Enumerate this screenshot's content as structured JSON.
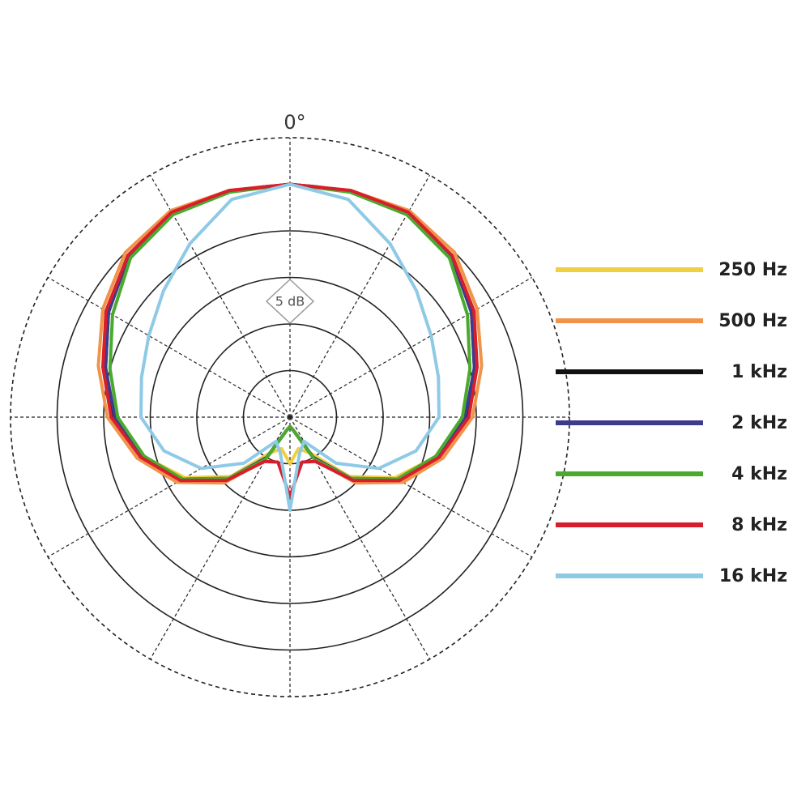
{
  "chart_data": {
    "type": "polar",
    "angle_label": "0°",
    "scale_label": "5 dB",
    "angles": [
      0,
      15,
      30,
      45,
      60,
      75,
      90,
      105,
      120,
      135,
      150,
      165,
      180,
      195,
      210,
      225,
      240,
      255,
      270,
      285,
      300,
      315,
      330,
      345
    ],
    "rlim": [
      0,
      30
    ],
    "rticks": [
      5,
      10,
      15,
      20,
      25,
      30
    ],
    "thetaticks": [
      0,
      30,
      60,
      90,
      120,
      150,
      180,
      210,
      240,
      270,
      300,
      330
    ],
    "grid": true,
    "legend": "right",
    "series": [
      {
        "name": "250 Hz",
        "color": "#f0d040",
        "values": [
          25,
          25.1,
          25.3,
          24.6,
          22.8,
          20.8,
          19,
          16.3,
          13,
          9,
          4.5,
          3.5,
          5,
          3.5,
          4.5,
          9,
          13,
          16.3,
          19,
          20.8,
          22.8,
          24.6,
          25.3,
          25.1
        ]
      },
      {
        "name": "500 Hz",
        "color": "#f0944a",
        "values": [
          25,
          25.2,
          25.6,
          25,
          23.2,
          21.3,
          19.6,
          17,
          14,
          10,
          5.3,
          1.5,
          1,
          1.5,
          5.3,
          10,
          14,
          17,
          19.6,
          21.3,
          23.2,
          25,
          25.6,
          25.2
        ]
      },
      {
        "name": "1 kHz",
        "color": "#111111",
        "values": [
          25,
          25.1,
          25.3,
          24.5,
          22.5,
          20.5,
          19,
          16.5,
          13.5,
          9.5,
          5,
          1.5,
          1,
          1.5,
          5,
          9.5,
          13.5,
          16.5,
          19,
          20.5,
          22.5,
          24.5,
          25.3,
          25.1
        ]
      },
      {
        "name": "2 kHz",
        "color": "#3c3b8e",
        "values": [
          25,
          25.1,
          25.3,
          24.5,
          22.5,
          20.5,
          18.8,
          16.3,
          13.3,
          9.3,
          5,
          1.5,
          1,
          1.5,
          5,
          9.3,
          13.3,
          16.3,
          18.8,
          20.5,
          22.5,
          24.5,
          25.3,
          25.1
        ]
      },
      {
        "name": "4 kHz",
        "color": "#4aaa2e",
        "values": [
          25,
          25,
          25.1,
          24.2,
          22,
          20,
          18.5,
          16.2,
          13.3,
          9.3,
          5.2,
          1.5,
          1,
          1.5,
          5.2,
          9.3,
          13.3,
          16.2,
          18.5,
          20,
          22,
          24.2,
          25.1,
          25
        ]
      },
      {
        "name": "8 kHz",
        "color": "#d81e2c",
        "values": [
          25,
          25.2,
          25.4,
          24.6,
          22.8,
          20.8,
          19.2,
          16.6,
          13.6,
          9.6,
          5.5,
          5,
          8.5,
          5,
          5.5,
          9.6,
          13.6,
          16.6,
          19.2,
          20.8,
          22.8,
          24.6,
          25.4,
          25.2
        ]
      },
      {
        "name": "16 kHz",
        "color": "#8ecae6",
        "values": [
          25,
          24.2,
          21.5,
          19.2,
          17.5,
          16.5,
          16,
          14,
          11,
          7,
          3,
          4,
          10,
          4,
          3,
          7,
          11,
          14,
          16,
          16.5,
          17.5,
          19.2,
          21.5,
          24.2
        ]
      }
    ]
  }
}
